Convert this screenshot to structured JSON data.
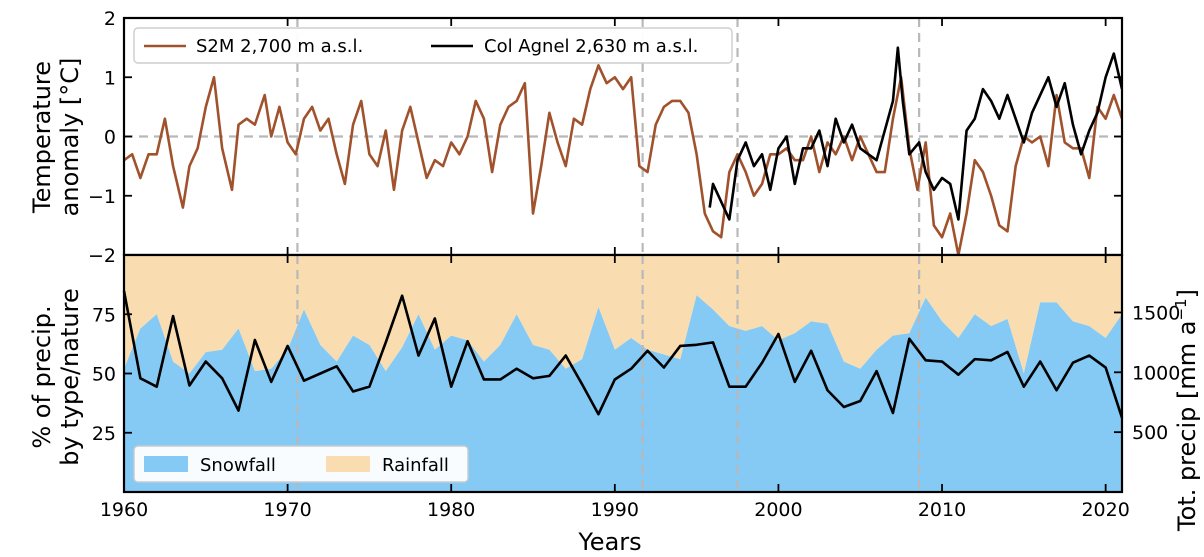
{
  "chart_data": [
    {
      "type": "line",
      "panel": "top",
      "ylabel_lines": [
        "Temperature",
        "anomaly [°C]"
      ],
      "xlim": [
        1960,
        2021
      ],
      "ylim": [
        -2,
        2
      ],
      "yticks": [
        -2,
        -1,
        0,
        1,
        2
      ],
      "ytick_labels": [
        "−2",
        "−1",
        "0",
        "1",
        "2"
      ],
      "grid": false,
      "zero_line": 0,
      "vlines": [
        1970.6,
        1991.7,
        1997.5,
        2008.6
      ],
      "legend_position": "top-left",
      "series": [
        {
          "name": "S2M 2,700 m a.s.l.",
          "color": "#a0522d",
          "x": [
            1960.0,
            1960.5,
            1961.0,
            1961.5,
            1962.0,
            1962.5,
            1963.0,
            1963.6,
            1964.0,
            1964.5,
            1965.0,
            1965.5,
            1966.0,
            1966.6,
            1967.0,
            1967.5,
            1968.0,
            1968.6,
            1969.0,
            1969.5,
            1970.0,
            1970.5,
            1971.0,
            1971.5,
            1972.0,
            1972.5,
            1973.0,
            1973.5,
            1974.0,
            1974.5,
            1975.0,
            1975.5,
            1976.0,
            1976.5,
            1977.0,
            1977.5,
            1978.0,
            1978.5,
            1979.0,
            1979.5,
            1980.0,
            1980.5,
            1981.0,
            1981.5,
            1982.0,
            1982.5,
            1983.0,
            1983.5,
            1984.0,
            1984.5,
            1985.0,
            1985.5,
            1986.0,
            1986.5,
            1987.0,
            1987.5,
            1988.0,
            1988.5,
            1989.0,
            1989.5,
            1990.0,
            1990.5,
            1991.0,
            1991.5,
            1992.0,
            1992.5,
            1993.0,
            1993.5,
            1994.0,
            1994.5,
            1995.0,
            1995.5,
            1996.0,
            1996.5,
            1997.0,
            1997.5,
            1998.0,
            1998.5,
            1999.0,
            1999.5,
            2000.0,
            2000.5,
            2001.0,
            2001.5,
            2002.0,
            2002.5,
            2003.0,
            2003.5,
            2004.0,
            2004.5,
            2005.0,
            2005.5,
            2006.0,
            2006.5,
            2007.0,
            2007.5,
            2008.0,
            2008.5,
            2009.0,
            2009.5,
            2010.0,
            2010.5,
            2011.0,
            2011.5,
            2012.0,
            2012.5,
            2013.0,
            2013.5,
            2014.0,
            2014.5,
            2015.0,
            2015.5,
            2016.0,
            2016.5,
            2017.0,
            2017.5,
            2018.0,
            2018.5,
            2019.0,
            2019.5,
            2020.0,
            2020.5,
            2021.0
          ],
          "y": [
            -0.4,
            -0.3,
            -0.7,
            -0.3,
            -0.3,
            0.3,
            -0.5,
            -1.2,
            -0.5,
            -0.2,
            0.5,
            1.0,
            -0.2,
            -0.9,
            0.2,
            0.3,
            0.2,
            0.7,
            0.0,
            0.5,
            -0.1,
            -0.3,
            0.3,
            0.5,
            0.1,
            0.3,
            -0.3,
            -0.8,
            0.2,
            0.6,
            -0.3,
            -0.5,
            0.1,
            -0.9,
            0.1,
            0.5,
            -0.1,
            -0.7,
            -0.4,
            -0.5,
            -0.1,
            -0.3,
            0.0,
            0.6,
            0.3,
            -0.6,
            0.2,
            0.5,
            0.6,
            0.9,
            -1.3,
            -0.5,
            0.4,
            -0.1,
            -0.5,
            0.3,
            0.2,
            0.8,
            1.2,
            0.9,
            1.0,
            0.8,
            1.0,
            -0.5,
            -0.6,
            0.2,
            0.5,
            0.6,
            0.6,
            0.4,
            -0.3,
            -1.3,
            -1.6,
            -1.7,
            -0.6,
            -0.3,
            -0.6,
            -1.0,
            -0.8,
            -0.3,
            -0.3,
            -0.2,
            -0.4,
            -0.4,
            0.0,
            -0.6,
            -0.1,
            -0.3,
            0.0,
            -0.4,
            0.0,
            -0.3,
            -0.6,
            -0.6,
            0.3,
            1.0,
            -0.2,
            -0.9,
            -0.1,
            -1.5,
            -1.7,
            -1.3,
            -2.0,
            -1.3,
            -0.4,
            -0.6,
            -1.0,
            -1.5,
            -1.6,
            -0.5,
            0.0,
            -0.1,
            0.0,
            -0.5,
            0.7,
            -0.1,
            -0.2,
            -0.2,
            -0.7,
            0.5,
            0.3,
            0.7,
            0.3
          ]
        },
        {
          "name": "Col Agnel 2,630 m a.s.l.",
          "color": "#000000",
          "x": [
            1995.8,
            1996.0,
            1996.5,
            1997.0,
            1997.5,
            1998.0,
            1998.5,
            1999.0,
            1999.5,
            2000.0,
            2000.5,
            2001.0,
            2001.5,
            2002.0,
            2002.5,
            2003.0,
            2003.5,
            2004.0,
            2004.5,
            2005.0,
            2005.5,
            2006.0,
            2006.5,
            2007.0,
            2007.3,
            2007.6,
            2008.0,
            2008.6,
            2009.0,
            2009.5,
            2010.0,
            2010.5,
            2011.0,
            2011.5,
            2012.0,
            2012.5,
            2013.0,
            2013.5,
            2014.0,
            2014.5,
            2015.0,
            2015.5,
            2016.0,
            2016.5,
            2017.0,
            2017.5,
            2018.0,
            2018.5,
            2019.0,
            2019.5,
            2020.0,
            2020.5,
            2021.0
          ],
          "y": [
            -1.2,
            -0.8,
            -1.1,
            -1.4,
            -0.4,
            -0.1,
            -0.5,
            -0.3,
            -0.9,
            -0.2,
            0.0,
            -0.8,
            -0.2,
            -0.2,
            0.1,
            -0.5,
            0.3,
            -0.1,
            0.2,
            -0.2,
            -0.3,
            -0.4,
            0.1,
            0.6,
            1.5,
            0.6,
            -0.3,
            -0.1,
            -0.6,
            -0.9,
            -0.7,
            -0.8,
            -1.4,
            0.1,
            0.3,
            0.8,
            0.6,
            0.3,
            0.7,
            0.3,
            -0.1,
            0.4,
            0.7,
            1.0,
            0.5,
            0.9,
            0.2,
            -0.3,
            0.1,
            0.4,
            1.0,
            1.4,
            0.8
          ]
        }
      ]
    },
    {
      "type": "area",
      "panel": "bottom",
      "xlabel": "Years",
      "ylabel_lines": [
        "% of precip.",
        "by type/nature"
      ],
      "y2label": "Tot. precip [mm a",
      "y2label_sup": "−1",
      "y2label_end": "]",
      "xlim": [
        1960,
        2021
      ],
      "ylim": [
        0,
        100
      ],
      "y2lim": [
        0,
        1980
      ],
      "xticks": [
        1960,
        1970,
        1980,
        1990,
        2000,
        2010,
        2020
      ],
      "yticks": [
        25,
        50,
        75
      ],
      "y2ticks": [
        500,
        1000,
        1500
      ],
      "grid": false,
      "vlines": [
        1970.6,
        1991.7,
        1997.5,
        2008.6
      ],
      "legend_position": "bottom-left",
      "years": [
        1960,
        1961,
        1962,
        1963,
        1964,
        1965,
        1966,
        1967,
        1968,
        1969,
        1970,
        1971,
        1972,
        1973,
        1974,
        1975,
        1976,
        1977,
        1978,
        1979,
        1980,
        1981,
        1982,
        1983,
        1984,
        1985,
        1986,
        1987,
        1988,
        1989,
        1990,
        1991,
        1992,
        1993,
        1994,
        1995,
        1996,
        1997,
        1998,
        1999,
        2000,
        2001,
        2002,
        2003,
        2004,
        2005,
        2006,
        2007,
        2008,
        2009,
        2010,
        2011,
        2012,
        2013,
        2014,
        2015,
        2016,
        2017,
        2018,
        2019,
        2020,
        2021
      ],
      "series": [
        {
          "name": "Snowfall",
          "color": "#85c9f5",
          "values": [
            52,
            69,
            75,
            55,
            50,
            59,
            60,
            69,
            51,
            52,
            60,
            77,
            62,
            55,
            66,
            62,
            51,
            61,
            75,
            60,
            66,
            64,
            55,
            62,
            75,
            62,
            60,
            52,
            56,
            78,
            60,
            65,
            60,
            58,
            56,
            83,
            77,
            70,
            68,
            70,
            64,
            67,
            72,
            71,
            55,
            52,
            60,
            66,
            67,
            82,
            72,
            65,
            75,
            70,
            73,
            50,
            80,
            80,
            72,
            70,
            65,
            75
          ]
        },
        {
          "name": "Rainfall",
          "color": "#f9ddb1",
          "values": [
            48,
            31,
            25,
            45,
            50,
            41,
            40,
            31,
            49,
            48,
            40,
            23,
            38,
            45,
            34,
            38,
            49,
            39,
            25,
            40,
            34,
            36,
            45,
            38,
            25,
            38,
            40,
            48,
            44,
            22,
            40,
            35,
            40,
            42,
            44,
            17,
            23,
            30,
            32,
            30,
            36,
            33,
            28,
            29,
            45,
            48,
            40,
            34,
            33,
            18,
            28,
            35,
            25,
            30,
            27,
            50,
            20,
            20,
            28,
            30,
            35,
            25
          ]
        },
        {
          "name": "",
          "color": "#000000",
          "axis": "right",
          "values": [
            1680,
            950,
            880,
            1470,
            890,
            1090,
            950,
            680,
            1270,
            920,
            1220,
            930,
            990,
            1050,
            840,
            880,
            1250,
            1640,
            1140,
            1450,
            880,
            1260,
            940,
            940,
            1030,
            950,
            970,
            1140,
            900,
            650,
            940,
            1030,
            1180,
            1040,
            1220,
            1230,
            1250,
            880,
            880,
            1080,
            1320,
            920,
            1180,
            850,
            710,
            760,
            1010,
            660,
            1280,
            1100,
            1090,
            980,
            1110,
            1100,
            1170,
            880,
            1090,
            850,
            1080,
            1140,
            1040,
            620
          ]
        }
      ]
    }
  ]
}
